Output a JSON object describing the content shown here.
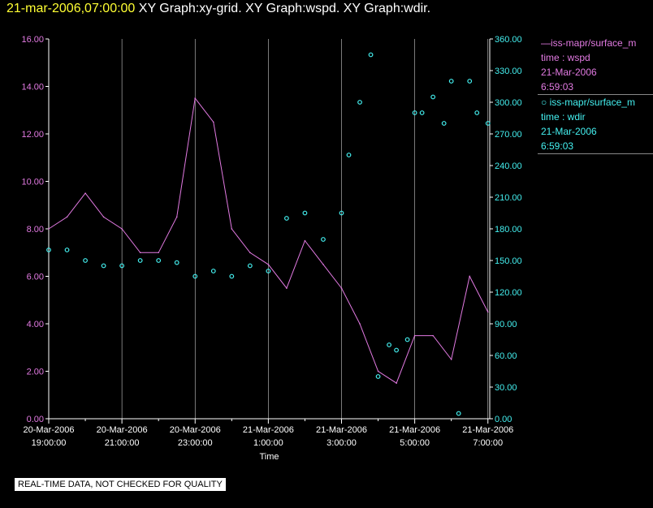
{
  "header": {
    "date": "21-mar-2006,07:00:00",
    "titles": "XY Graph:xy-grid.  XY Graph:wspd.  XY Graph:wdir."
  },
  "legend": {
    "wspd": {
      "line1": "—iss-mapr/surface_m",
      "line2": "time : wspd",
      "line3": "21-Mar-2006",
      "line4": "6:59:03"
    },
    "wdir": {
      "line1": "○ iss-mapr/surface_m",
      "line2": "time : wdir",
      "line3": "21-Mar-2006",
      "line4": "6:59:03"
    }
  },
  "disclaimer": "REAL-TIME DATA, NOT CHECKED FOR QUALITY",
  "colors": {
    "wspd": "#e27ae2",
    "wdir": "#44f0f0",
    "grid": "#ffffff",
    "axis": "#ffffff"
  },
  "chart_data": {
    "type": "line",
    "xlabel": "Time",
    "x_range_hours": [
      -12,
      0.05
    ],
    "x_ticks": [
      {
        "h": -12,
        "date": "20-Mar-2006",
        "time": "19:00:00"
      },
      {
        "h": -10,
        "date": "20-Mar-2006",
        "time": "21:00:00"
      },
      {
        "h": -8,
        "date": "20-Mar-2006",
        "time": "23:00:00"
      },
      {
        "h": -6,
        "date": "21-Mar-2006",
        "time": "1:00:00"
      },
      {
        "h": -4,
        "date": "21-Mar-2006",
        "time": "3:00:00"
      },
      {
        "h": -2,
        "date": "21-Mar-2006",
        "time": "5:00:00"
      },
      {
        "h": 0,
        "date": "21-Mar-2006",
        "time": "7:00:00"
      }
    ],
    "y_left": {
      "min": 0,
      "max": 16,
      "step": 2,
      "decimals": 2
    },
    "y_right": {
      "min": 0,
      "max": 360,
      "step": 30,
      "decimals": 2
    },
    "grid": "vertical",
    "legend_position": "right",
    "series": [
      {
        "name": "iss-mapr/surface_m time : wspd",
        "axis": "left",
        "style": "line",
        "x": [
          -12.0,
          -11.5,
          -11.0,
          -10.5,
          -10.0,
          -9.5,
          -9.0,
          -8.5,
          -8.0,
          -7.5,
          -7.0,
          -6.5,
          -6.0,
          -5.5,
          -5.0,
          -4.5,
          -4.0,
          -3.5,
          -3.0,
          -2.5,
          -2.0,
          -1.5,
          -1.0,
          -0.5,
          0.0
        ],
        "values": [
          8.0,
          8.5,
          9.5,
          8.5,
          8.0,
          7.0,
          7.0,
          8.5,
          13.5,
          12.5,
          8.0,
          7.0,
          6.5,
          5.5,
          7.5,
          6.5,
          5.5,
          4.0,
          2.0,
          1.5,
          3.5,
          3.5,
          2.5,
          6.0,
          4.5
        ]
      },
      {
        "name": "iss-mapr/surface_m time : wdir",
        "axis": "right",
        "style": "markers",
        "x": [
          -12.0,
          -11.5,
          -11.0,
          -10.5,
          -10.0,
          -9.5,
          -9.0,
          -8.5,
          -8.0,
          -7.5,
          -7.0,
          -6.5,
          -6.0,
          -5.5,
          -5.0,
          -4.5,
          -4.0,
          -3.8,
          -3.5,
          -3.2,
          -3.0,
          -2.7,
          -2.5,
          -2.2,
          -2.0,
          -1.8,
          -1.5,
          -1.2,
          -1.0,
          -0.8,
          -0.5,
          -0.3,
          0.0
        ],
        "values": [
          160,
          160,
          150,
          145,
          145,
          150,
          150,
          148,
          135,
          140,
          135,
          145,
          140,
          190,
          195,
          170,
          195,
          250,
          300,
          345,
          40,
          70,
          65,
          75,
          290,
          290,
          305,
          280,
          320,
          5,
          320,
          290,
          280
        ]
      }
    ]
  }
}
